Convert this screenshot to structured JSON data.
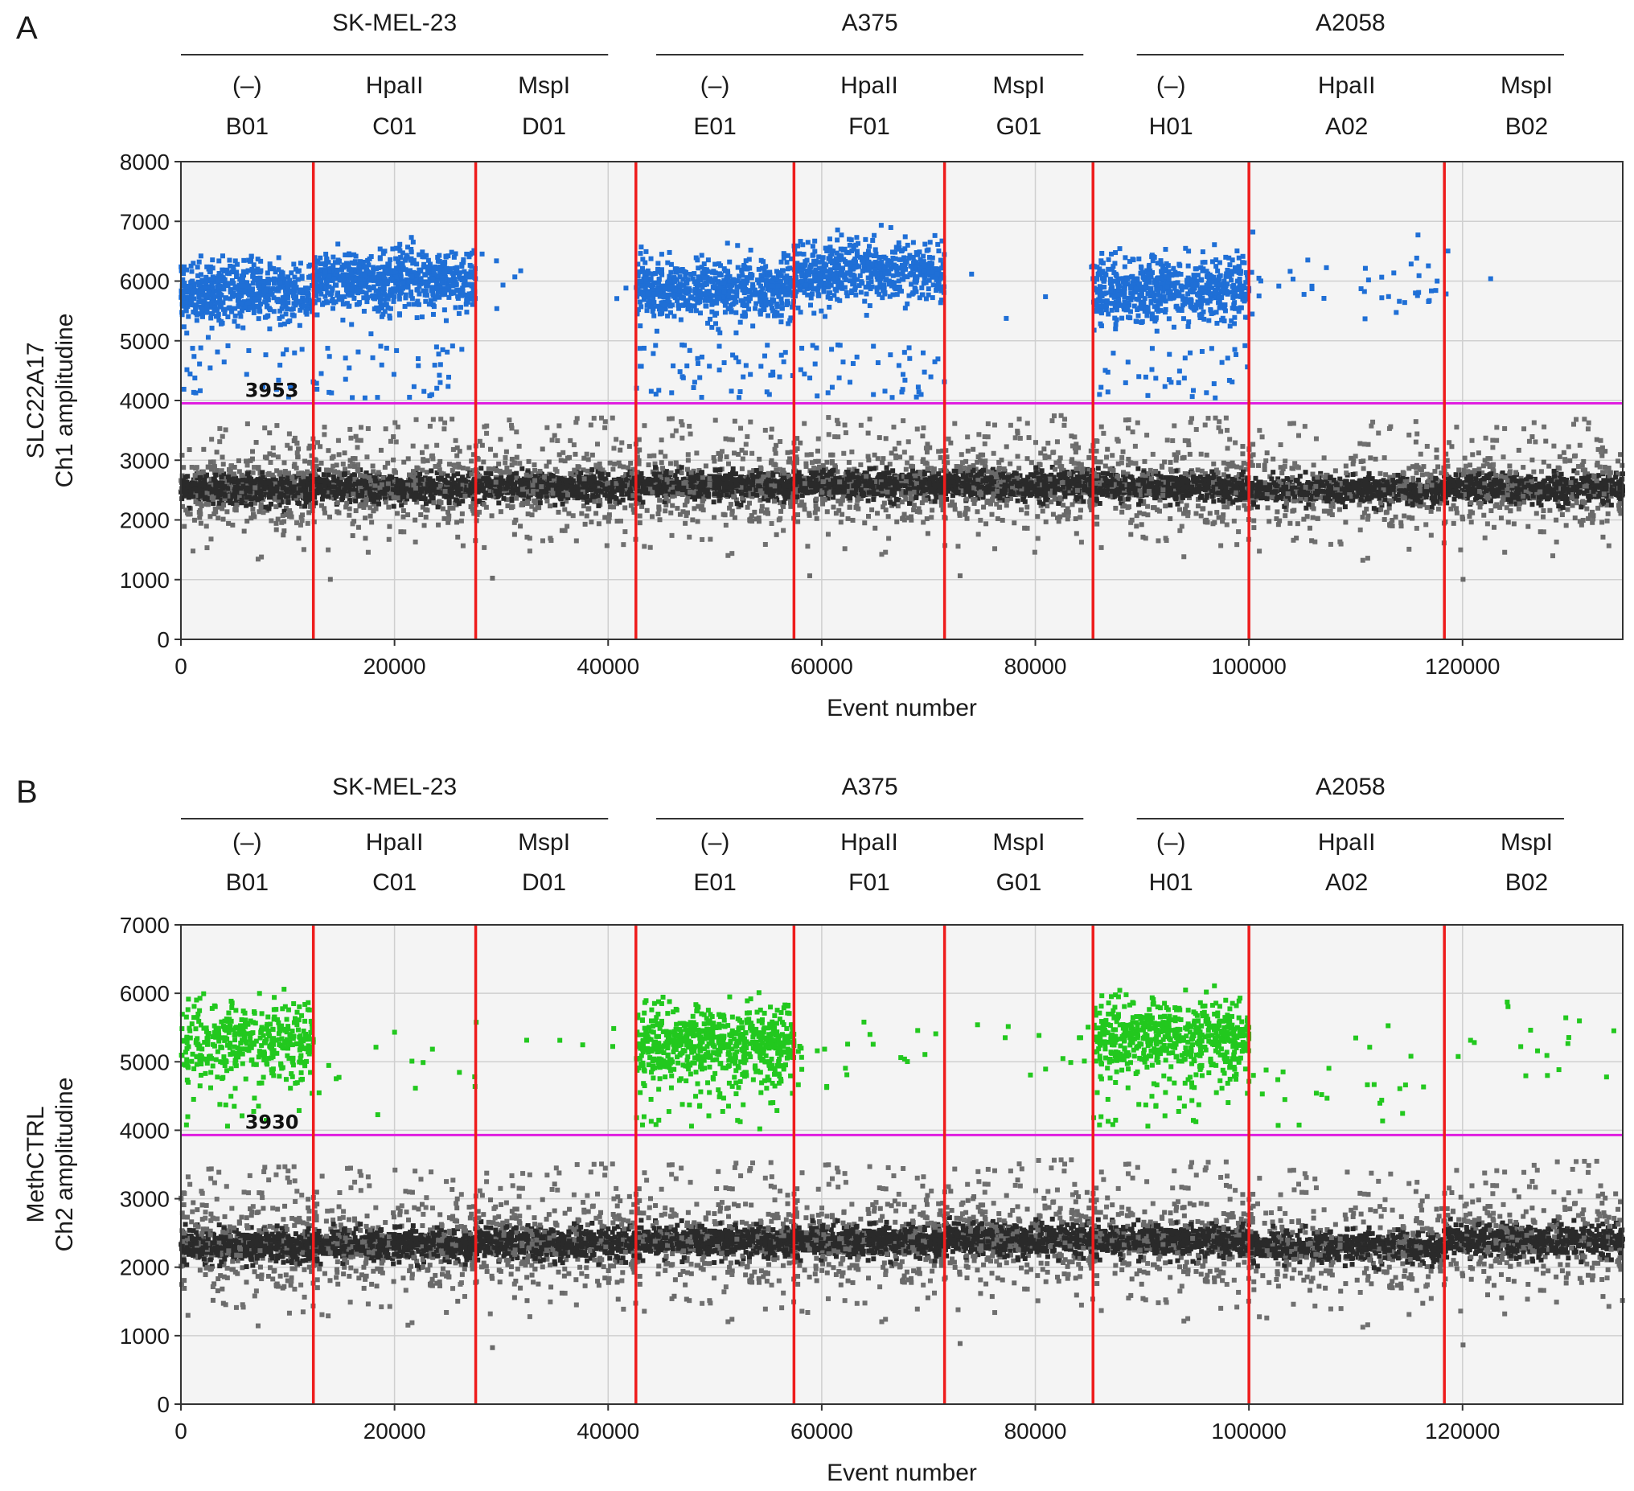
{
  "chart_data": [
    {
      "type": "scatter",
      "panel": "A",
      "xlabel": "Event number",
      "ylabel_line1": "SLC22A17",
      "ylabel_line2": "Ch1 amplitudine",
      "xlim": [
        0,
        135000
      ],
      "ylim": [
        0,
        8000
      ],
      "xticks": [
        0,
        20000,
        40000,
        60000,
        80000,
        100000,
        120000
      ],
      "yticks": [
        0,
        1000,
        2000,
        3000,
        4000,
        5000,
        6000,
        7000,
        8000
      ],
      "threshold": 3953,
      "threshold_label": "3953",
      "positive_color": "#1f6fd6",
      "negative_color": "#5a5a5a",
      "threshold_color": "#e01ee0",
      "divider_color": "#ee1c1c",
      "groups": [
        {
          "label": "SK-MEL-23",
          "x_range": [
            0,
            40000
          ]
        },
        {
          "label": "A375",
          "x_range": [
            44500,
            84500
          ]
        },
        {
          "label": "A2058",
          "x_range": [
            89500,
            129500
          ]
        }
      ],
      "wells": [
        {
          "treatment": "(–)",
          "well": "B01",
          "x_range": [
            0,
            12400
          ],
          "positive_mean": 5800,
          "positive_count": 620,
          "negative_mean": 2520
        },
        {
          "treatment": "HpaII",
          "well": "C01",
          "x_range": [
            12400,
            27600
          ],
          "positive_mean": 6000,
          "positive_count": 760,
          "negative_mean": 2540
        },
        {
          "treatment": "MspI",
          "well": "D01",
          "x_range": [
            27600,
            42600
          ],
          "positive_mean": 5850,
          "positive_count": 8,
          "negative_mean": 2560
        },
        {
          "treatment": "(–)",
          "well": "E01",
          "x_range": [
            42600,
            57400
          ],
          "positive_mean": 5850,
          "positive_count": 720,
          "negative_mean": 2580
        },
        {
          "treatment": "HpaII",
          "well": "F01",
          "x_range": [
            57400,
            71500
          ],
          "positive_mean": 6150,
          "positive_count": 640,
          "negative_mean": 2600
        },
        {
          "treatment": "MspI",
          "well": "G01",
          "x_range": [
            71500,
            85400
          ],
          "positive_mean": 5900,
          "positive_count": 4,
          "negative_mean": 2600
        },
        {
          "treatment": "(–)",
          "well": "H01",
          "x_range": [
            85400,
            100000
          ],
          "positive_mean": 5850,
          "positive_count": 700,
          "negative_mean": 2560
        },
        {
          "treatment": "HpaII",
          "well": "A02",
          "x_range": [
            100000,
            118300
          ],
          "positive_mean": 5950,
          "positive_count": 40,
          "negative_mean": 2500
        },
        {
          "treatment": "MspI",
          "well": "B02",
          "x_range": [
            118300,
            135000
          ],
          "positive_mean": 5850,
          "positive_count": 3,
          "negative_mean": 2540
        }
      ]
    },
    {
      "type": "scatter",
      "panel": "B",
      "xlabel": "Event number",
      "ylabel_line1": "MethCTRL",
      "ylabel_line2": "Ch2 amplitudine",
      "xlim": [
        0,
        135000
      ],
      "ylim": [
        0,
        7000
      ],
      "xticks": [
        0,
        20000,
        40000,
        60000,
        80000,
        100000,
        120000
      ],
      "yticks": [
        0,
        1000,
        2000,
        3000,
        4000,
        5000,
        6000,
        7000
      ],
      "threshold": 3930,
      "threshold_label": "3930",
      "positive_color": "#22c81e",
      "negative_color": "#5a5a5a",
      "threshold_color": "#e01ee0",
      "divider_color": "#ee1c1c",
      "groups": [
        {
          "label": "SK-MEL-23",
          "x_range": [
            0,
            40000
          ]
        },
        {
          "label": "A375",
          "x_range": [
            44500,
            84500
          ]
        },
        {
          "label": "A2058",
          "x_range": [
            89500,
            129500
          ]
        }
      ],
      "wells": [
        {
          "treatment": "(–)",
          "well": "B01",
          "x_range": [
            0,
            12400
          ],
          "positive_mean": 5300,
          "positive_count": 420,
          "negative_mean": 2320
        },
        {
          "treatment": "HpaII",
          "well": "C01",
          "x_range": [
            12400,
            27600
          ],
          "positive_mean": 4900,
          "positive_count": 14,
          "negative_mean": 2330
        },
        {
          "treatment": "MspI",
          "well": "D01",
          "x_range": [
            27600,
            42600
          ],
          "positive_mean": 5200,
          "positive_count": 6,
          "negative_mean": 2360
        },
        {
          "treatment": "(–)",
          "well": "E01",
          "x_range": [
            42600,
            57400
          ],
          "positive_mean": 5250,
          "positive_count": 700,
          "negative_mean": 2380
        },
        {
          "treatment": "HpaII",
          "well": "F01",
          "x_range": [
            57400,
            71500
          ],
          "positive_mean": 5100,
          "positive_count": 22,
          "negative_mean": 2380
        },
        {
          "treatment": "MspI",
          "well": "G01",
          "x_range": [
            71500,
            85400
          ],
          "positive_mean": 5300,
          "positive_count": 12,
          "negative_mean": 2420
        },
        {
          "treatment": "(–)",
          "well": "H01",
          "x_range": [
            85400,
            100000
          ],
          "positive_mean": 5350,
          "positive_count": 640,
          "negative_mean": 2390
        },
        {
          "treatment": "HpaII",
          "well": "A02",
          "x_range": [
            100000,
            118300
          ],
          "positive_mean": 4700,
          "positive_count": 26,
          "negative_mean": 2300
        },
        {
          "treatment": "MspI",
          "well": "B02",
          "x_range": [
            118300,
            135000
          ],
          "positive_mean": 5300,
          "positive_count": 18,
          "negative_mean": 2400
        }
      ]
    }
  ]
}
